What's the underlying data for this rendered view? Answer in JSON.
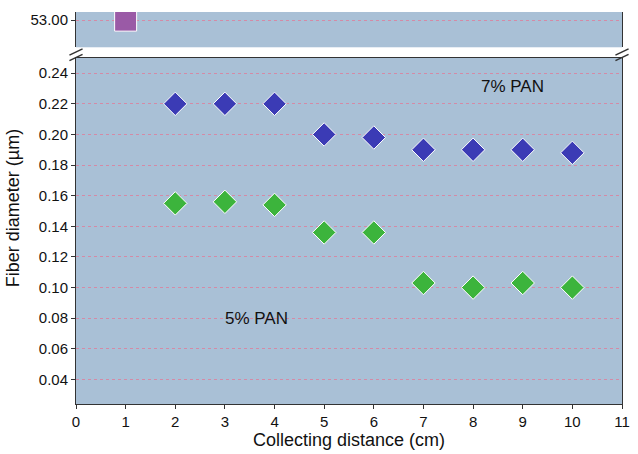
{
  "chart_data": {
    "type": "scatter",
    "x_label": "Collecting distance (cm)",
    "y_label": "Fiber diameter (µm)",
    "xlim": [
      0,
      11
    ],
    "xticks": [
      0,
      1,
      2,
      3,
      4,
      5,
      6,
      7,
      8,
      9,
      10,
      11
    ],
    "ylim": [
      0.024,
      0.25
    ],
    "yticks": [
      0.04,
      0.06,
      0.08,
      {
        "value": 0.1,
        "label": "0.10"
      },
      0.12,
      0.14,
      0.16,
      0.18,
      {
        "value": 0.2,
        "label": "0.20"
      },
      0.22,
      0.24
    ],
    "y2lim": [
      52.8,
      53.06
    ],
    "y2ticks": [
      {
        "value": 53,
        "label": "53.00"
      }
    ],
    "grid": true,
    "series": [
      {
        "color": "#9a5aa6",
        "marker": "square",
        "axis": "y2",
        "x": [
          1
        ],
        "values": [
          53
        ]
      },
      {
        "name": "7% PAN",
        "color": "#3b3bb5",
        "marker": "diamond",
        "x": [
          2,
          3,
          4,
          5,
          6,
          7,
          8,
          9,
          10
        ],
        "values": [
          0.22,
          0.22,
          0.22,
          0.2,
          0.198,
          0.19,
          0.19,
          0.19,
          0.188
        ]
      },
      {
        "name": "5% PAN",
        "color": "#3cb43c",
        "marker": "diamond",
        "x": [
          2,
          3,
          4,
          5,
          6,
          7,
          8,
          9,
          10
        ],
        "values": [
          0.155,
          0.156,
          0.154,
          0.136,
          0.136,
          0.103,
          0.1,
          0.103,
          0.1
        ]
      }
    ]
  }
}
